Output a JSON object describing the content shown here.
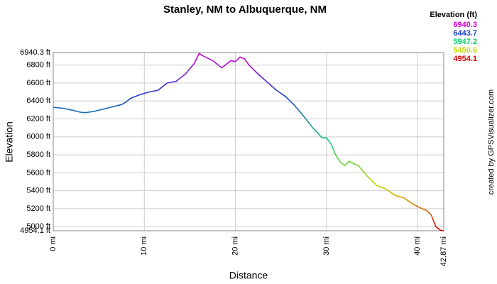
{
  "chart_data": {
    "type": "line",
    "title": "Stanley, NM to Albuquerque, NM",
    "x_label": "Distance",
    "y_label": "Elevation",
    "credit": "created by GPSVisualizer.com",
    "legend": {
      "title": "Elevation (ft)",
      "values": [
        6940.3,
        6443.7,
        5947.2,
        5450.6,
        4954.1
      ],
      "colors": [
        "#d000d0",
        "#1c40cc",
        "#10d070",
        "#c8d800",
        "#dd0000"
      ]
    },
    "grid": true,
    "xlim": [
      0,
      42.87
    ],
    "xticks": [
      {
        "value": 0,
        "label": "0 mi"
      },
      {
        "value": 10,
        "label": "10 mi"
      },
      {
        "value": 20,
        "label": "20 mi"
      },
      {
        "value": 30,
        "label": "30 mi"
      },
      {
        "value": 40,
        "label": "40 mi"
      },
      {
        "value": 42.87,
        "label": "42.87 mi"
      }
    ],
    "ylim": [
      4954.1,
      6940.3
    ],
    "yticks": [
      {
        "value": 4954.1,
        "label": "4954.1 ft"
      },
      {
        "value": 5000,
        "label": "5000 ft"
      },
      {
        "value": 5200,
        "label": "5200 ft"
      },
      {
        "value": 5400,
        "label": "5400 ft"
      },
      {
        "value": 5600,
        "label": "5600 ft"
      },
      {
        "value": 5800,
        "label": "5800 ft"
      },
      {
        "value": 6000,
        "label": "6000 ft"
      },
      {
        "value": 6200,
        "label": "6200 ft"
      },
      {
        "value": 6400,
        "label": "6400 ft"
      },
      {
        "value": 6600,
        "label": "6600 ft"
      },
      {
        "value": 6800,
        "label": "6800 ft"
      },
      {
        "value": 6940.3,
        "label": "6940.3 ft"
      }
    ],
    "x": [
      0,
      1,
      2,
      3,
      3.5,
      4.5,
      5.5,
      6.5,
      7.5,
      8,
      8.5,
      9.5,
      10.5,
      11.5,
      12,
      12.5,
      13.5,
      14.5,
      15.5,
      16,
      16.5,
      17.5,
      18.5,
      19,
      19.5,
      20,
      20.5,
      21,
      21.5,
      22,
      22.5,
      23.5,
      24.5,
      25.5,
      26.5,
      27.5,
      28.5,
      29,
      29.5,
      30,
      30.5,
      31,
      31.5,
      32,
      32.5,
      33,
      33.5,
      34.5,
      35.5,
      36.5,
      37.5,
      38.5,
      39.5,
      40.5,
      41,
      41.5,
      42,
      42.5,
      42.87
    ],
    "values": [
      6330,
      6320,
      6300,
      6275,
      6270,
      6285,
      6310,
      6335,
      6360,
      6390,
      6430,
      6470,
      6500,
      6520,
      6560,
      6600,
      6620,
      6700,
      6820,
      6930,
      6900,
      6850,
      6770,
      6810,
      6850,
      6840,
      6890,
      6870,
      6800,
      6750,
      6700,
      6610,
      6520,
      6450,
      6350,
      6230,
      6100,
      6050,
      5990,
      5990,
      5920,
      5800,
      5720,
      5680,
      5730,
      5700,
      5680,
      5560,
      5460,
      5420,
      5350,
      5320,
      5250,
      5200,
      5180,
      5130,
      5000,
      4960,
      4954.1
    ]
  }
}
